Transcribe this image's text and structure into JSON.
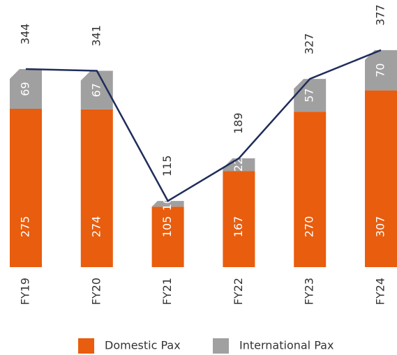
{
  "chart_data": {
    "type": "bar",
    "categories": [
      "FY19",
      "FY20",
      "FY21",
      "FY22",
      "FY23",
      "FY24"
    ],
    "series": [
      {
        "name": "Domestic Pax",
        "color": "#e85d0e",
        "values": [
          275,
          274,
          105,
          167,
          270,
          307
        ]
      },
      {
        "name": "International Pax",
        "color": "#a0a0a0",
        "values": [
          69,
          67,
          10,
          22,
          57,
          70
        ]
      }
    ],
    "totals": [
      344,
      341,
      115,
      189,
      327,
      377
    ],
    "line_color": "#1f2d5a",
    "stacked": true,
    "ylim": [
      0,
      464
    ],
    "legend": "bottom"
  }
}
